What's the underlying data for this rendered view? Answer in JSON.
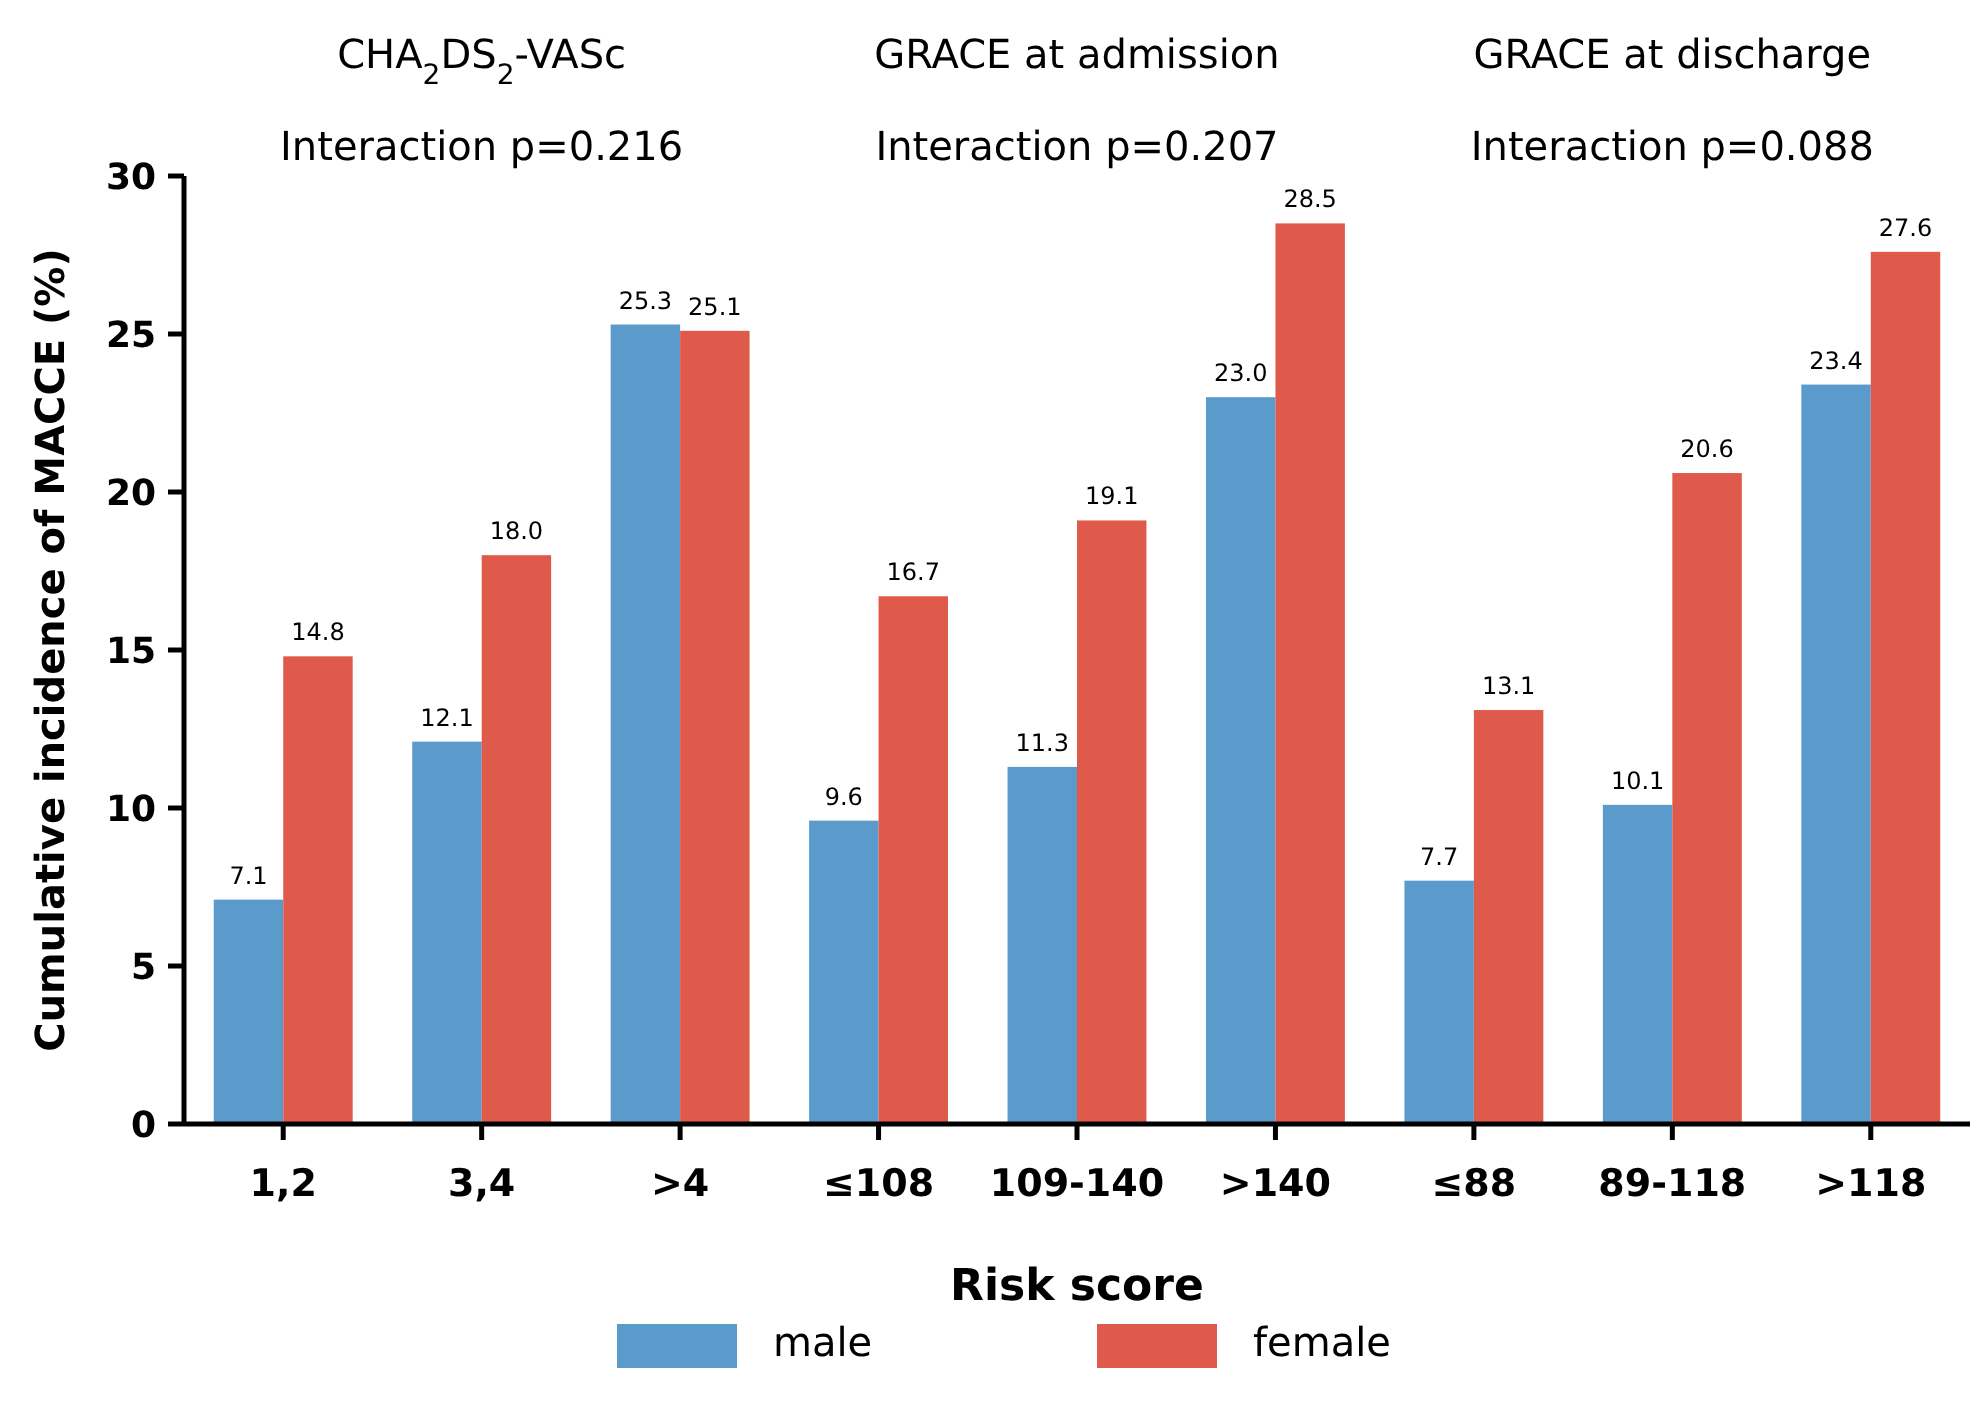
{
  "chart_data": {
    "type": "bar",
    "xlabel": "Risk score",
    "ylabel": "Cumulative incidence of MACCE (%)",
    "categories": [
      "1,2",
      "3,4",
      ">4",
      "≤108",
      "109-140",
      ">140",
      "≤88",
      "89-118",
      ">118"
    ],
    "series": [
      {
        "name": "male",
        "color": "#5b9bcb",
        "values": [
          7.1,
          12.1,
          25.3,
          9.6,
          11.3,
          23.0,
          7.7,
          10.1,
          23.4
        ],
        "value_labels": [
          "7.1",
          "12.1",
          "25.3",
          "9.6",
          "11.3",
          "23.0",
          "7.7",
          "10.1",
          "23.4"
        ]
      },
      {
        "name": "female",
        "color": "#e05a4c",
        "values": [
          14.8,
          18.0,
          25.1,
          16.7,
          19.1,
          28.5,
          13.1,
          20.6,
          27.6
        ],
        "value_labels": [
          "14.8",
          "18.0",
          "25.1",
          "16.7",
          "19.1",
          "28.5",
          "13.1",
          "20.6",
          "27.6"
        ]
      }
    ],
    "ylim": [
      0,
      30
    ],
    "yticks": [
      0,
      5,
      10,
      15,
      20,
      25,
      30
    ],
    "grid": false,
    "legend": "bottom",
    "annotations": [
      "CHA$_{2}$DS$_{2}$-VASc",
      "Interaction p=0.216",
      "GRACE at admission",
      "Interaction p=0.207",
      "GRACE at discharge",
      "Interaction p=0.088"
    ]
  }
}
